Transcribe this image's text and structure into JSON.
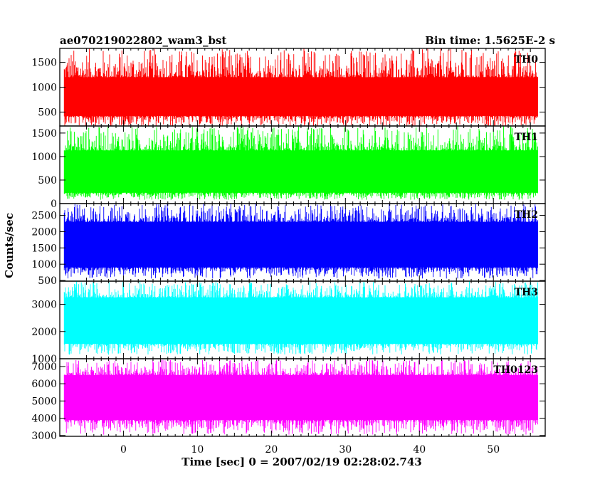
{
  "header": {
    "title": "ae070219022802_wam3_bst",
    "bin_time": "Bin time: 1.5625E-2 s"
  },
  "chart_data": {
    "type": "line",
    "title": "ae070219022802_wam3_bst",
    "xlabel": "Time [sec] 0 = 2007/02/19 02:28:02.743",
    "ylabel": "Counts/sec",
    "xlim": [
      -8.6,
      57.0
    ],
    "x_ticks": [
      0,
      10,
      20,
      30,
      40,
      50
    ],
    "x_range_data": [
      -8.0,
      56.0
    ],
    "bin_time": 0.015625,
    "panels": [
      {
        "name": "TH0",
        "color": "#ff0000",
        "ylim": [
          220,
          1780
        ],
        "y_ticks": [
          500,
          1000,
          1500
        ],
        "typical_range": [
          420,
          1200
        ],
        "extremes": [
          200,
          1780
        ]
      },
      {
        "name": "TH1",
        "color": "#00ff00",
        "ylim": [
          0,
          1650
        ],
        "y_ticks": [
          0,
          500,
          1000,
          1500
        ],
        "typical_range": [
          230,
          1130
        ],
        "extremes": [
          80,
          1650
        ]
      },
      {
        "name": "TH2",
        "color": "#0000ff",
        "ylim": [
          480,
          2860
        ],
        "y_ticks": [
          500,
          1000,
          1500,
          2000,
          2500
        ],
        "typical_range": [
          900,
          2300
        ],
        "extremes": [
          560,
          2860
        ]
      },
      {
        "name": "TH3",
        "color": "#00ffff",
        "ylim": [
          1000,
          3850
        ],
        "y_ticks": [
          1000,
          2000,
          3000
        ],
        "typical_range": [
          1550,
          3250
        ],
        "extremes": [
          1150,
          3850
        ]
      },
      {
        "name": "TH0123",
        "color": "#ff00ff",
        "ylim": [
          2950,
          7450
        ],
        "y_ticks": [
          3000,
          4000,
          5000,
          6000,
          7000
        ],
        "typical_range": [
          3900,
          6500
        ],
        "extremes": [
          3050,
          7400
        ]
      }
    ]
  }
}
